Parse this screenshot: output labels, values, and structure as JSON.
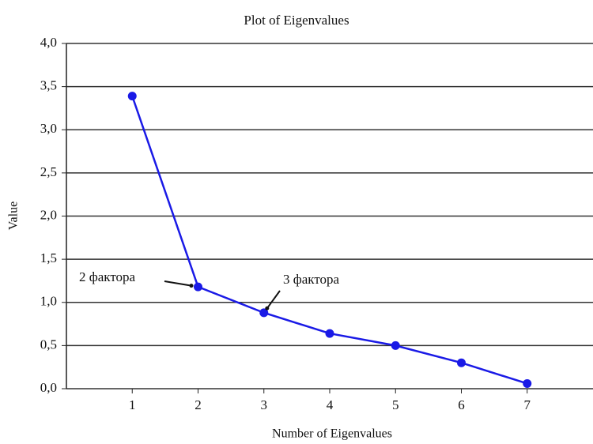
{
  "chart_data": {
    "type": "line",
    "title": "Plot of Eigenvalues",
    "xlabel": "Number of Eigenvalues",
    "ylabel": "Value",
    "x": [
      1,
      2,
      3,
      4,
      5,
      6,
      7
    ],
    "series": [
      {
        "name": "Eigenvalues",
        "color": "#1a1ae6",
        "values": [
          3.39,
          1.18,
          0.88,
          0.64,
          0.5,
          0.3,
          0.06
        ]
      }
    ],
    "xlim": [
      0,
      8
    ],
    "xticks": [
      1,
      2,
      3,
      4,
      5,
      6,
      7
    ],
    "ylim": [
      0,
      4
    ],
    "yticks": [
      {
        "value": 0,
        "label": "0,0"
      },
      {
        "value": 0.5,
        "label": "0,5"
      },
      {
        "value": 1,
        "label": "1,0"
      },
      {
        "value": 1.5,
        "label": "1,5"
      },
      {
        "value": 2,
        "label": "2,0"
      },
      {
        "value": 2.5,
        "label": "2,5"
      },
      {
        "value": 3,
        "label": "3,0"
      },
      {
        "value": 3.5,
        "label": "3,5"
      },
      {
        "value": 4,
        "label": "4,0"
      }
    ],
    "grid": true,
    "annotations": [
      {
        "text": "2 фактора"
      },
      {
        "text": "3 фактора"
      }
    ]
  }
}
